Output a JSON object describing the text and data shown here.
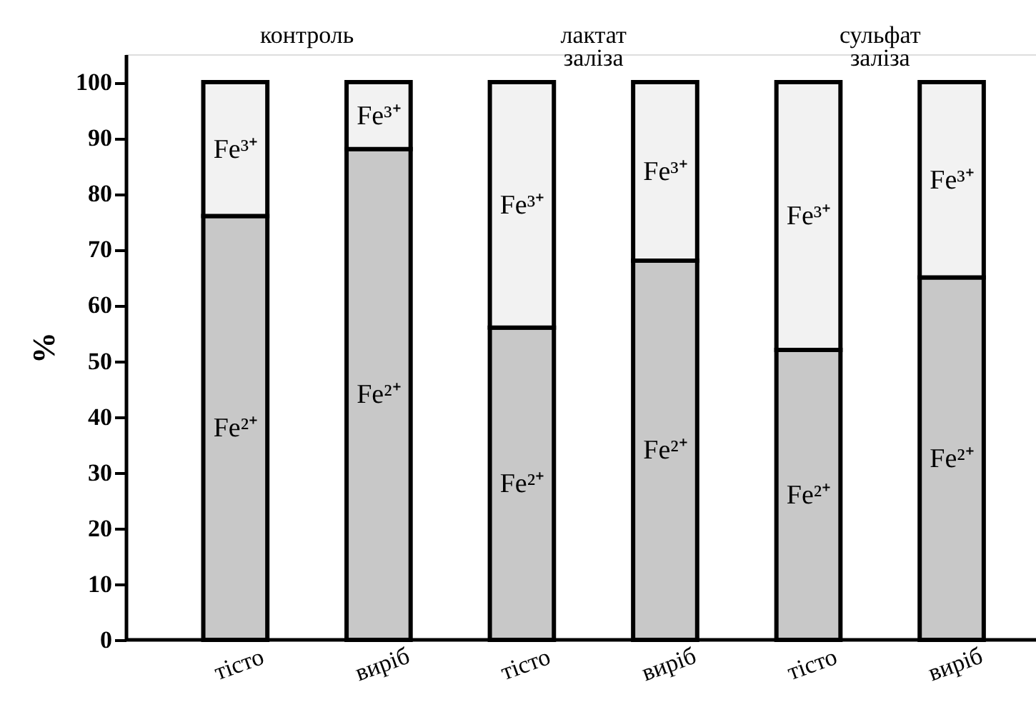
{
  "chart_data": {
    "type": "bar",
    "stacked": true,
    "ylabel": "%",
    "categories": [
      "тісто",
      "виріб",
      "тісто",
      "виріб",
      "тісто",
      "виріб"
    ],
    "series": [
      {
        "name": "Fe²⁺",
        "color": "#c8c8c8",
        "values": [
          76,
          88,
          56,
          68,
          52,
          65
        ]
      },
      {
        "name": "Fe³⁺",
        "color": "#f2f2f2",
        "values": [
          24,
          12,
          44,
          32,
          48,
          35
        ]
      }
    ],
    "ylim": [
      0,
      105
    ],
    "yticks": [
      0,
      10,
      20,
      30,
      40,
      50,
      60,
      70,
      80,
      90,
      100
    ],
    "grid": false,
    "legend": false,
    "annotations": [
      "контроль",
      "лактат\nзаліза",
      "сульфат\nзаліза"
    ]
  }
}
